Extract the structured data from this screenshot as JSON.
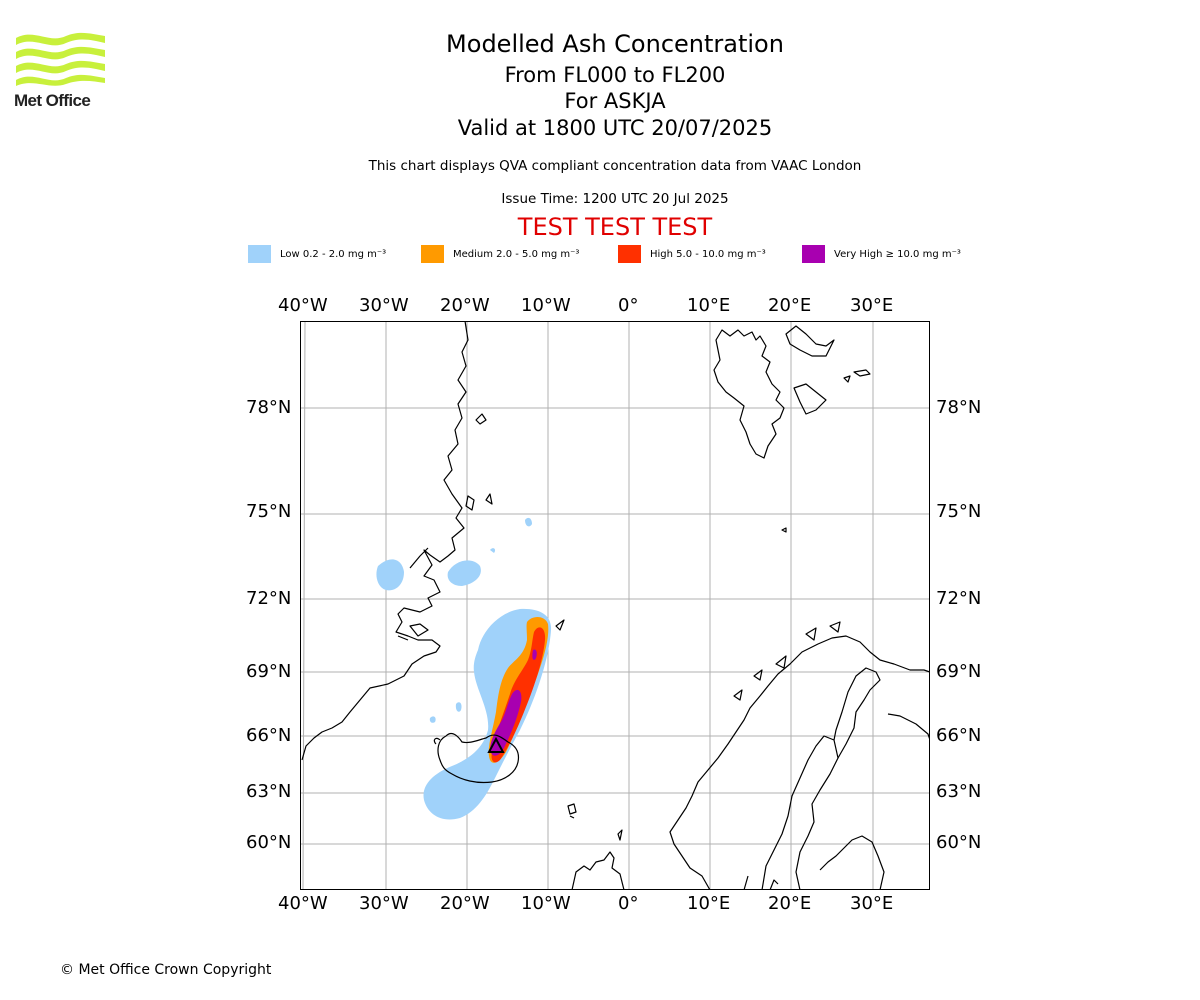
{
  "logo": {
    "text": "Met Office",
    "color": "#c8f03c"
  },
  "header": {
    "title": "Modelled Ash Concentration",
    "levels": "From FL000 to FL200",
    "volcano": "For ASKJA",
    "valid": "Valid at 1800 UTC 20/07/2025",
    "subtitle": "This chart displays QVA compliant concentration data from VAAC London",
    "issue_time": "Issue Time: 1200 UTC 20 Jul 2025",
    "banner": "TEST TEST TEST",
    "banner_color": "#e00000"
  },
  "legend": [
    {
      "label": "Low 0.2 - 2.0 mg m⁻³",
      "color": "#a0d2fa"
    },
    {
      "label": "Medium 2.0 - 5.0 mg m⁻³",
      "color": "#ff9a00"
    },
    {
      "label": "High 5.0 - 10.0 mg m⁻³",
      "color": "#ff3000"
    },
    {
      "label": "Very High  ≥  10.0 mg m⁻³",
      "color": "#a800b0"
    }
  ],
  "map": {
    "lon_ticks": [
      "40°W",
      "30°W",
      "20°W",
      "10°W",
      "0°",
      "10°E",
      "20°E",
      "30°E"
    ],
    "lat_ticks": [
      "78°N",
      "75°N",
      "72°N",
      "69°N",
      "66°N",
      "63°N",
      "60°N"
    ],
    "grid": true,
    "volcano_marker": "triangle"
  },
  "footer": {
    "copyright": "© Met Office Crown Copyright"
  }
}
